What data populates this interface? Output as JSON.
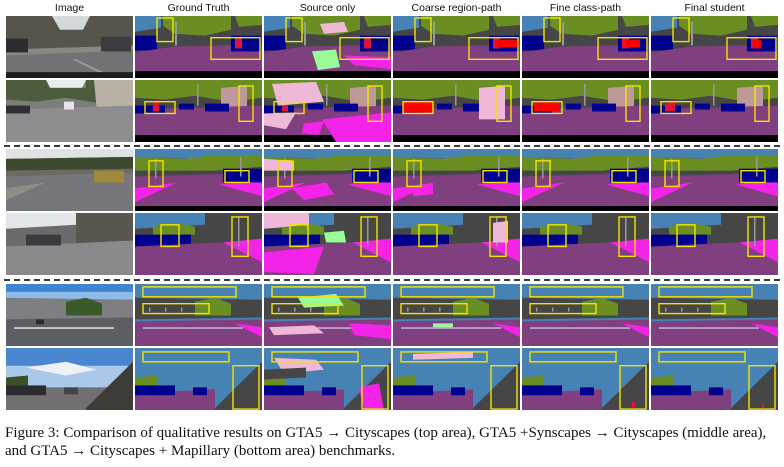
{
  "figure": {
    "columns": [
      "Image",
      "Ground Truth",
      "Source only",
      "Coarse region-path",
      "Fine class-path",
      "Final student"
    ],
    "caption": "Figure 3: Comparison of qualitative results on GTA5 → Cityscapes (top area), GTA5 +Synscapes → Cityscapes (middle area), and GTA5 → Cityscapes + Mapillary (bottom area) benchmarks."
  },
  "palette": {
    "road": "#804080",
    "sidewalk": "#f423e8",
    "building": "#464646",
    "vegetation": "#6b8e23",
    "sky": "#4682b4",
    "car": "#00008e",
    "person": "#dc143c",
    "rider": "#ff0000",
    "pole": "#999999",
    "fence": "#be9999",
    "terrain": "#98fb98",
    "lane": "#c8b4e0",
    "ego_vehicle": "#000000",
    "misprediction": "#f0b8d8",
    "highlight": "#f5e400"
  }
}
